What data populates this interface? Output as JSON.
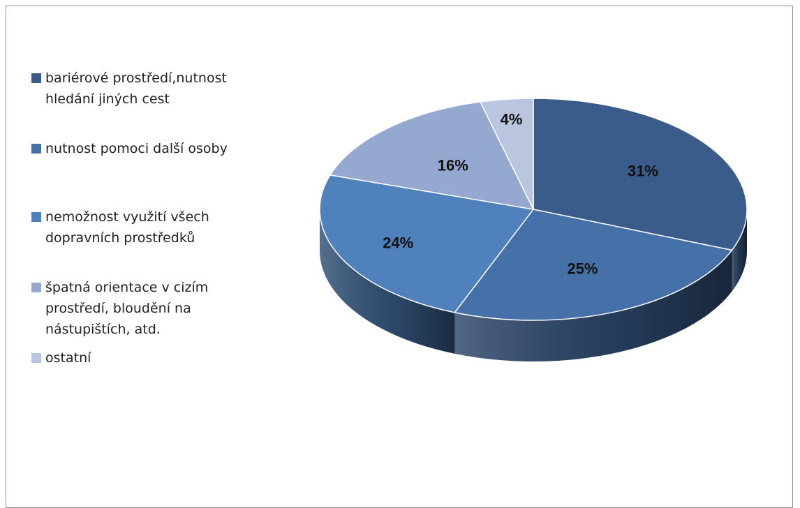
{
  "chart_data": {
    "type": "pie",
    "title": "",
    "legend_position": "left",
    "slices": [
      {
        "label": "bariérové prostředí,nutnost\nhledání jiných cest",
        "value": 31,
        "value_label": "31%",
        "color": "#3a5c8a"
      },
      {
        "label": "nutnost pomoci další osoby",
        "value": 25,
        "value_label": "25%",
        "color": "#4570a8"
      },
      {
        "label": "nemožnost využití všech\ndopravních prostředků",
        "value": 24,
        "value_label": "24%",
        "color": "#4f81bd"
      },
      {
        "label": "špatná orientace v cizím\nprostředí, bloudění na\nnástupištích, atd.",
        "value": 16,
        "value_label": "16%",
        "color": "#95a8d0"
      },
      {
        "label": "ostatní",
        "value": 4,
        "value_label": "4%",
        "color": "#bac6e0"
      }
    ]
  }
}
